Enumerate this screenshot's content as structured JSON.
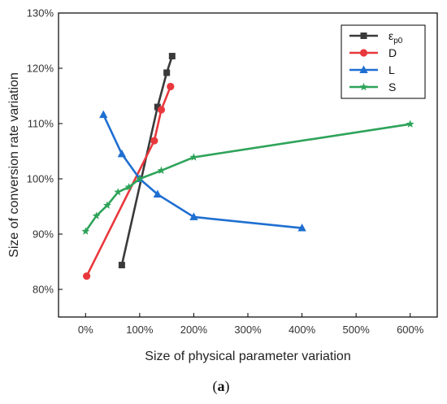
{
  "chart_data": {
    "type": "line",
    "title": "",
    "xlabel": "Size of physical parameter variation",
    "ylabel": "Size of conversion rate variation",
    "caption": {
      "open": "(",
      "letter": "a",
      "close": ")"
    },
    "xlim": [
      -50,
      650
    ],
    "ylim": [
      75,
      130
    ],
    "x_ticks": [
      0,
      100,
      200,
      300,
      400,
      500,
      600
    ],
    "x_tick_labels": [
      "0%",
      "100%",
      "200%",
      "300%",
      "400%",
      "500%",
      "600%"
    ],
    "y_ticks": [
      80,
      90,
      100,
      110,
      120,
      130
    ],
    "y_tick_labels": [
      "80%",
      "90%",
      "100%",
      "110%",
      "120%",
      "130%"
    ],
    "grid": false,
    "legend_position": "top-right",
    "series": [
      {
        "name": "ε",
        "name_sub": "p0",
        "color": "#3a3a3a",
        "marker": "square",
        "x": [
          67,
          133,
          150,
          160
        ],
        "y": [
          84.4,
          113.0,
          119.2,
          122.2
        ]
      },
      {
        "name": "D",
        "color": "#e8383d",
        "marker": "circle",
        "x": [
          2,
          127,
          140,
          157
        ],
        "y": [
          82.4,
          106.9,
          112.5,
          116.7
        ]
      },
      {
        "name": "L",
        "color": "#1f6fd1",
        "marker": "triangle",
        "x": [
          33,
          67,
          100,
          133,
          200,
          400
        ],
        "y": [
          111.6,
          104.5,
          100.0,
          97.2,
          93.1,
          91.1
        ]
      },
      {
        "name": "S",
        "color": "#2ea35a",
        "marker": "star",
        "x": [
          0,
          20,
          40,
          60,
          80,
          100,
          140,
          200,
          600
        ],
        "y": [
          90.5,
          93.3,
          95.2,
          97.6,
          98.5,
          100.0,
          101.5,
          103.9,
          109.9
        ]
      }
    ]
  }
}
